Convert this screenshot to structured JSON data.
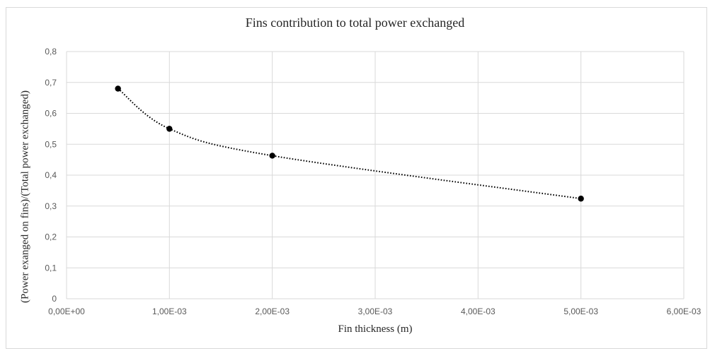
{
  "chart_data": {
    "type": "scatter",
    "title": "Fins contribution to total power exchanged",
    "xlabel": "Fin thickness (m)",
    "ylabel": "(Power exanged on fins)/(Total power exchanged)",
    "xlim": [
      0,
      0.006
    ],
    "ylim": [
      0,
      0.8
    ],
    "grid": true,
    "x_ticks": [
      "0,00E+00",
      "1,00E-03",
      "2,00E-03",
      "3,00E-03",
      "4,00E-03",
      "5,00E-03",
      "6,00E-03"
    ],
    "y_ticks": [
      "0",
      "0,1",
      "0,2",
      "0,3",
      "0,4",
      "0,5",
      "0,6",
      "0,7",
      "0,8"
    ],
    "marker_color": "#000000",
    "line_style": "dotted smooth",
    "series": [
      {
        "points": [
          {
            "x": 0.0005,
            "y": 0.68
          },
          {
            "x": 0.001,
            "y": 0.55
          },
          {
            "x": 0.002,
            "y": 0.463
          },
          {
            "x": 0.005,
            "y": 0.324
          }
        ]
      }
    ]
  }
}
